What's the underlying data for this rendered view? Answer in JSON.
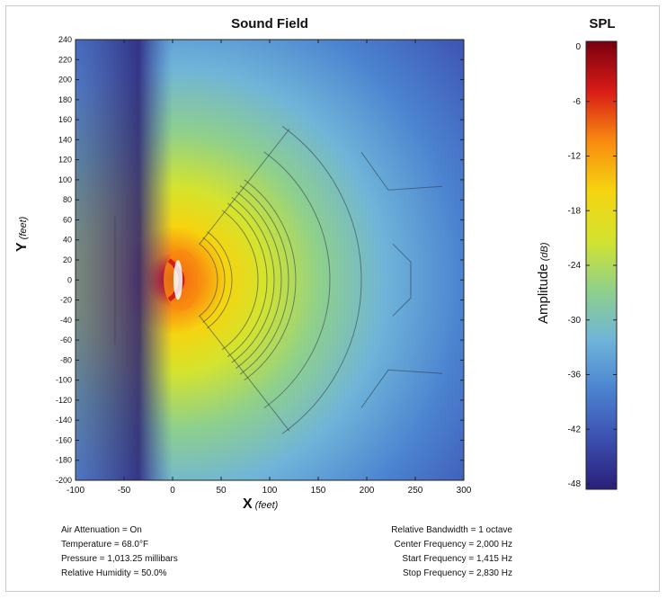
{
  "chart_data": {
    "type": "heatmap",
    "title": "Sound Field",
    "xlabel": "X",
    "xunit": "(feet)",
    "ylabel": "Y",
    "yunit": "(feet)",
    "xlim": [
      -100,
      300
    ],
    "ylim": [
      -200,
      240
    ],
    "xticks": [
      "-100",
      "-50",
      "0",
      "50",
      "100",
      "150",
      "200",
      "250",
      "300"
    ],
    "yticks": [
      "240",
      "220",
      "200",
      "180",
      "160",
      "140",
      "120",
      "100",
      "80",
      "60",
      "40",
      "20",
      "0",
      "-20",
      "-40",
      "-60",
      "-80",
      "-100",
      "-120",
      "-140",
      "-160",
      "-180",
      "-200"
    ],
    "colorbar": {
      "title": "SPL",
      "label": "Amplitude",
      "unit": "(dB)",
      "range": [
        -48,
        0
      ],
      "ticks": [
        "0",
        "-6",
        "-12",
        "-18",
        "-24",
        "-30",
        "-36",
        "-42",
        "-48"
      ],
      "colors": [
        "#7a0010",
        "#d81c17",
        "#f98a10",
        "#f5d410",
        "#d4e32e",
        "#8fd08a",
        "#6fb4d9",
        "#4b83d0",
        "#3c4fb0",
        "#2a1f78"
      ]
    }
  },
  "conditions_left": [
    "Air Attenuation = On",
    "Temperature = 68.0°F",
    "Pressure = 1,013.25 millibars",
    "Relative Humidity = 50.0%"
  ],
  "conditions_right": [
    "Relative Bandwidth = 1 octave",
    "Center Frequency = 2,000 Hz",
    "Start Frequency = 1,415 Hz",
    "Stop Frequency = 2,830 Hz"
  ]
}
